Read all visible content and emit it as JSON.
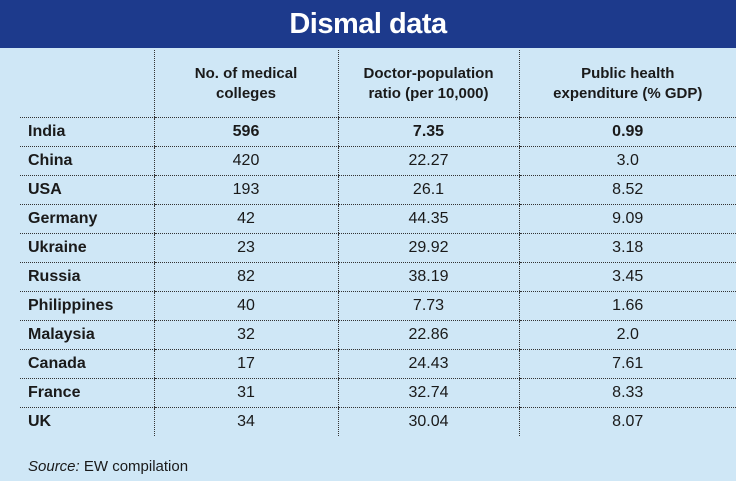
{
  "title": "Dismal data",
  "chart_data": {
    "type": "table",
    "columns": [
      "",
      "No. of medical\ncolleges",
      "Doctor-population\nratio (per 10,000)",
      "Public health\nexpenditure (% GDP)"
    ],
    "rows": [
      {
        "country": "India",
        "medical_colleges": "596",
        "doctor_ratio": "7.35",
        "health_expenditure": "0.99",
        "bold": true
      },
      {
        "country": "China",
        "medical_colleges": "420",
        "doctor_ratio": "22.27",
        "health_expenditure": "3.0",
        "bold": false
      },
      {
        "country": "USA",
        "medical_colleges": "193",
        "doctor_ratio": "26.1",
        "health_expenditure": "8.52",
        "bold": false
      },
      {
        "country": "Germany",
        "medical_colleges": "42",
        "doctor_ratio": "44.35",
        "health_expenditure": "9.09",
        "bold": false
      },
      {
        "country": "Ukraine",
        "medical_colleges": "23",
        "doctor_ratio": "29.92",
        "health_expenditure": "3.18",
        "bold": false
      },
      {
        "country": "Russia",
        "medical_colleges": "82",
        "doctor_ratio": "38.19",
        "health_expenditure": "3.45",
        "bold": false
      },
      {
        "country": "Philippines",
        "medical_colleges": "40",
        "doctor_ratio": "7.73",
        "health_expenditure": "1.66",
        "bold": false
      },
      {
        "country": "Malaysia",
        "medical_colleges": "32",
        "doctor_ratio": "22.86",
        "health_expenditure": "2.0",
        "bold": false
      },
      {
        "country": "Canada",
        "medical_colleges": "17",
        "doctor_ratio": "24.43",
        "health_expenditure": "7.61",
        "bold": false
      },
      {
        "country": "France",
        "medical_colleges": "31",
        "doctor_ratio": "32.74",
        "health_expenditure": "8.33",
        "bold": false
      },
      {
        "country": "UK",
        "medical_colleges": "34",
        "doctor_ratio": "30.04",
        "health_expenditure": "8.07",
        "bold": false
      }
    ]
  },
  "source": {
    "label": "Source:",
    "text": " EW compilation"
  },
  "colors": {
    "title_bg": "#1d3a8c",
    "panel_bg": "#cfe7f6",
    "title_text": "#ffffff"
  }
}
